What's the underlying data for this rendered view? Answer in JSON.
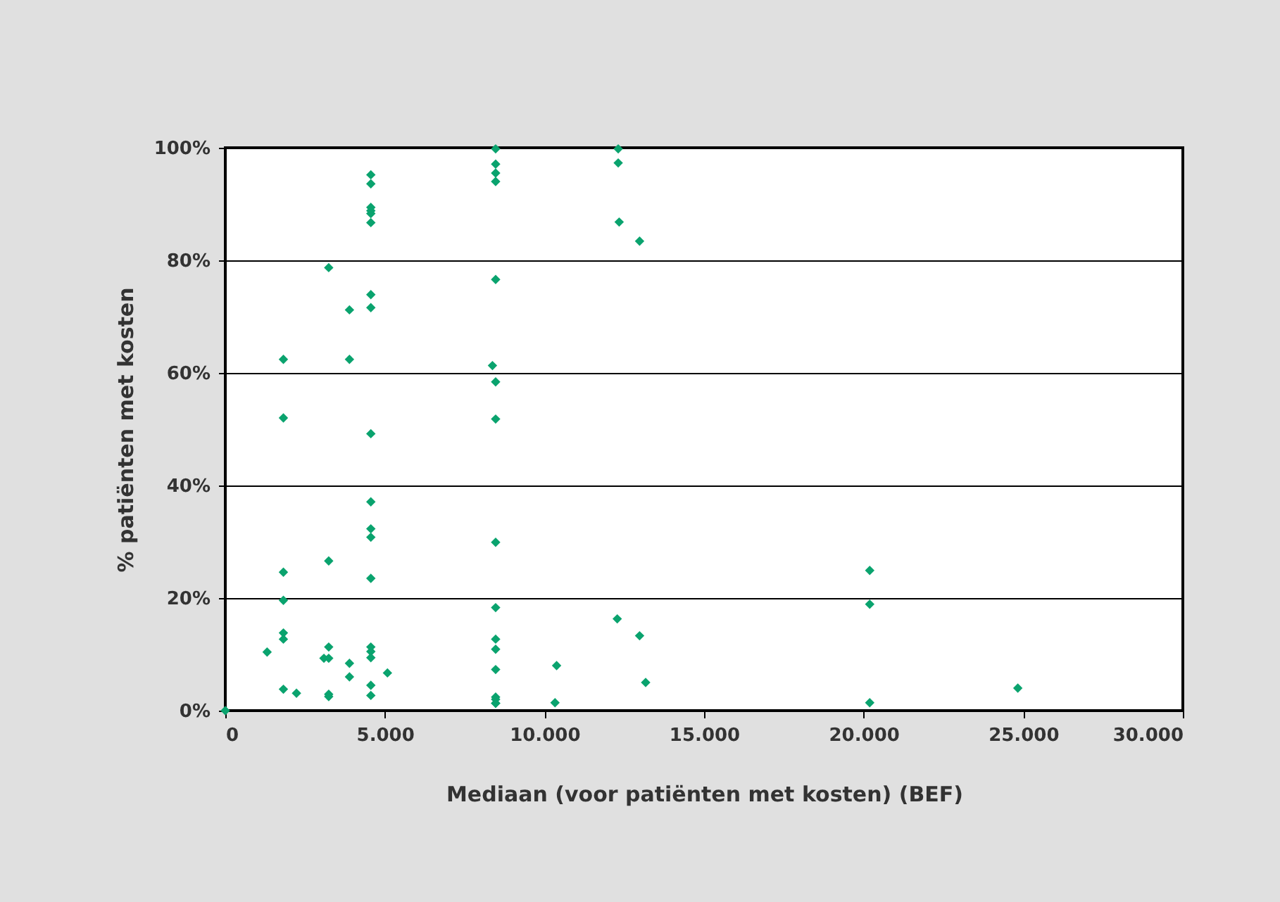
{
  "chart_data": {
    "type": "scatter",
    "xlabel": "Mediaan (voor patiënten met kosten) (BEF)",
    "ylabel": "% patiënten met kosten",
    "marker": "diamond",
    "grid": "y",
    "xlim": [
      0,
      30000
    ],
    "ylim": [
      0,
      100
    ],
    "xticks": [
      0,
      {
        "value": 5000,
        "label": "5.000"
      },
      {
        "value": 10000,
        "label": "10.000"
      },
      {
        "value": 15000,
        "label": "15.000"
      },
      {
        "value": 20000,
        "label": "20.000"
      },
      {
        "value": 25000,
        "label": "25.000"
      },
      {
        "value": 30000,
        "label": "30.000"
      }
    ],
    "yticks": [
      {
        "value": 0,
        "label": "0%"
      },
      {
        "value": 20,
        "label": "20%"
      },
      {
        "value": 40,
        "label": "40%"
      },
      {
        "value": 60,
        "label": "60%"
      },
      {
        "value": 80,
        "label": "80%"
      },
      {
        "value": 100,
        "label": "100%"
      }
    ],
    "series": [
      {
        "color": "#0aa36e",
        "x": [
          0,
          1310,
          1820,
          1820,
          1820,
          1820,
          1820,
          1820,
          1820,
          2230,
          3240,
          3240,
          3240,
          3090,
          3240,
          3240,
          3240,
          3890,
          3890,
          3890,
          3890,
          4560,
          4560,
          4560,
          4560,
          4560,
          4560,
          4560,
          4560,
          4560,
          4560,
          4560,
          4560,
          4560,
          4560,
          4560,
          4560,
          4560,
          4560,
          5080,
          8470,
          8470,
          8470,
          8470,
          8470,
          8370,
          8470,
          8470,
          8470,
          8470,
          8470,
          8470,
          8470,
          8470,
          8470,
          8470,
          8470,
          10380,
          10330,
          12310,
          12310,
          12340,
          12980,
          12280,
          12980,
          13170,
          20190,
          20190,
          20190,
          24830
        ],
        "values": [
          0,
          10.4,
          62.4,
          52.0,
          24.6,
          19.6,
          13.8,
          12.7,
          3.8,
          3.1,
          78.7,
          26.6,
          11.3,
          9.3,
          9.3,
          2.9,
          2.5,
          71.2,
          62.4,
          8.4,
          6.0,
          95.2,
          93.6,
          89.4,
          88.8,
          88.3,
          86.7,
          73.9,
          71.6,
          49.2,
          37.1,
          32.3,
          30.8,
          23.5,
          11.3,
          10.5,
          9.4,
          4.5,
          2.7,
          6.7,
          99.8,
          97.1,
          95.5,
          94.0,
          76.6,
          61.3,
          58.4,
          51.8,
          29.9,
          18.3,
          12.7,
          10.9,
          7.3,
          2.4,
          2.0,
          1.3,
          1.3,
          8.0,
          1.4,
          99.8,
          97.3,
          86.8,
          83.4,
          16.3,
          13.3,
          5.0,
          24.9,
          18.9,
          1.4,
          4.0
        ]
      }
    ]
  }
}
